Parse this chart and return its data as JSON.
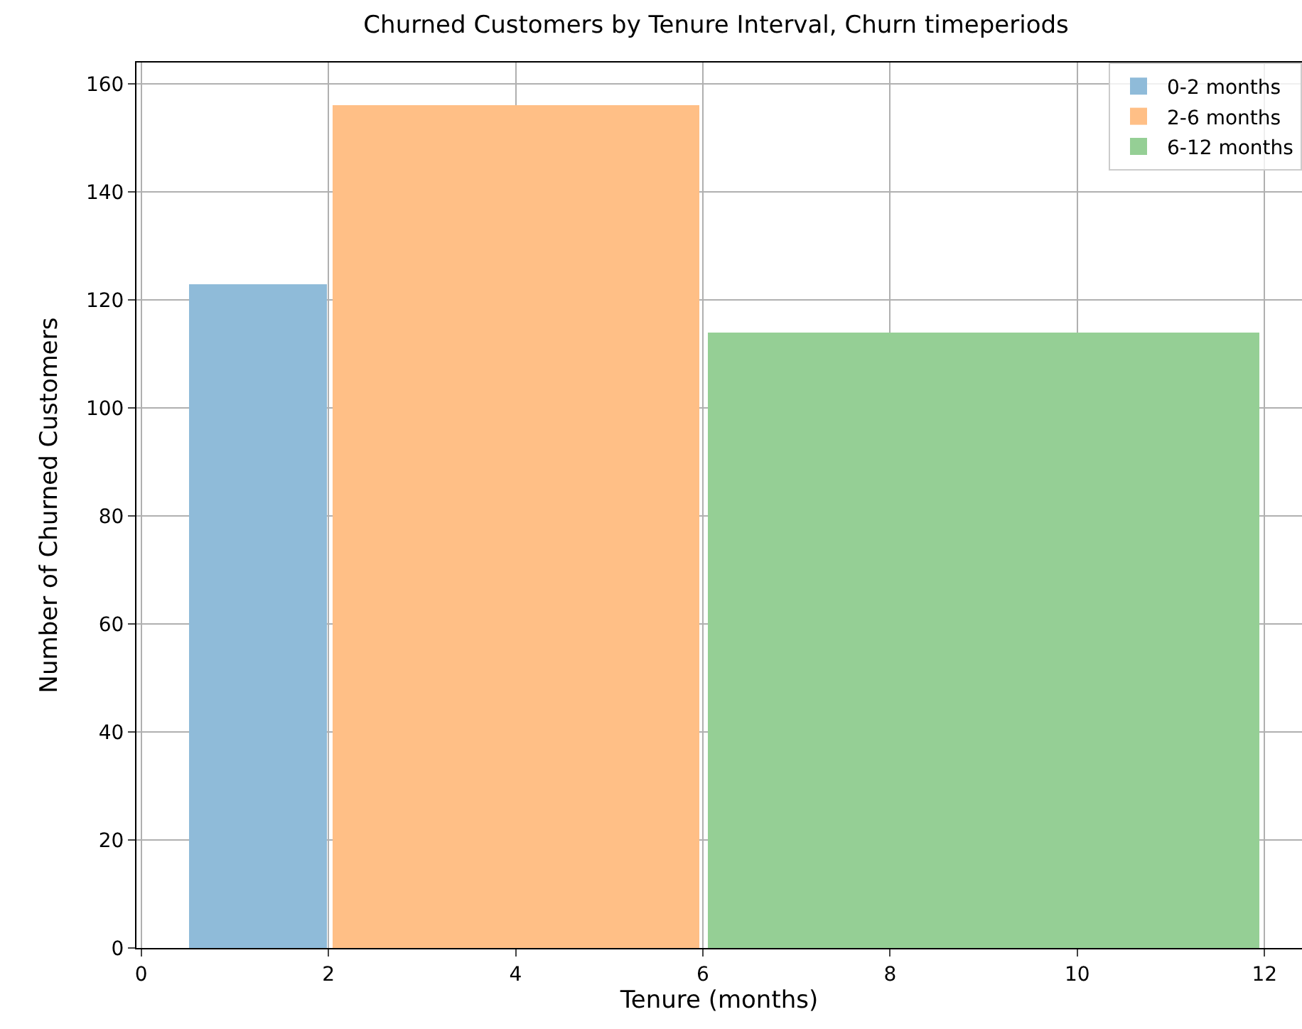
{
  "chart_data": {
    "type": "histogram",
    "title": "Churned Customers by Tenure Interval, Churn timeperiods",
    "xlabel": "Tenure (months)",
    "ylabel": "Number of Churned Customers",
    "bins": [
      0.5,
      2,
      6,
      12
    ],
    "series": [
      {
        "name": "0-2 months",
        "color": "#8fbbd9",
        "values": [
          123,
          null,
          null
        ]
      },
      {
        "name": "2-6 months",
        "color": "#ffbf86",
        "values": [
          null,
          156,
          null
        ]
      },
      {
        "name": "6-12 months",
        "color": "#95cf95",
        "values": [
          null,
          null,
          114
        ]
      }
    ],
    "xlim": [
      -0.05,
      12.4
    ],
    "xticks": [
      0,
      2,
      4,
      6,
      8,
      10,
      12
    ],
    "ylim": [
      0,
      164
    ],
    "yticks": [
      0,
      20,
      40,
      60,
      80,
      100,
      120,
      140,
      160
    ],
    "grid": true,
    "legend": "top right"
  }
}
